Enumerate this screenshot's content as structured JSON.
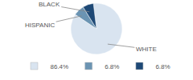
{
  "chart_data": {
    "type": "pie",
    "categories": [
      "WHITE",
      "HISPANIC",
      "BLACK"
    ],
    "values": [
      86.4,
      6.8,
      6.8
    ],
    "value_labels": [
      "86.4%",
      "6.8%",
      "6.8%"
    ],
    "colors": [
      "#d9e4f0",
      "#6b94b3",
      "#1e4976"
    ],
    "legend": "bottom"
  }
}
